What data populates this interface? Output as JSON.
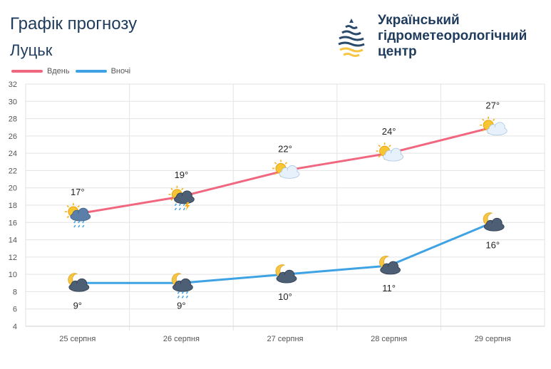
{
  "header": {
    "title": "Графік прогнозу",
    "city": "Луцьк",
    "org_lines": [
      "Український",
      "гідрометеорологічний",
      "центр"
    ]
  },
  "colors": {
    "day": "#f0677f",
    "night": "#3fa2e4",
    "text": "#1f3c5c",
    "logo_dark": "#2a4a6b",
    "logo_yellow": "#f6c543"
  },
  "chart_data": {
    "type": "line",
    "categories": [
      "25 серпня",
      "26 серпня",
      "27 серпня",
      "28 серпня",
      "29 серпня"
    ],
    "series": [
      {
        "name": "Вдень",
        "values": [
          17,
          19,
          22,
          24,
          27
        ],
        "labels": [
          "17°",
          "19°",
          "22°",
          "24°",
          "27°"
        ],
        "icons": [
          "sun-cloud-rain",
          "sun-storm-rain",
          "sun-cloud",
          "sun-cloud",
          "sun-cloud"
        ]
      },
      {
        "name": "Вночі",
        "values": [
          9,
          9,
          10,
          11,
          16
        ],
        "labels": [
          "9°",
          "9°",
          "10°",
          "11°",
          "16°"
        ],
        "icons": [
          "moon-cloud",
          "moon-cloud-rain",
          "moon-cloud",
          "moon-cloud",
          "moon-cloud"
        ]
      }
    ],
    "ylim": [
      4,
      32
    ],
    "yticks": [
      4,
      6,
      8,
      10,
      12,
      14,
      16,
      18,
      20,
      22,
      24,
      26,
      28,
      30,
      32
    ],
    "legend": "top-left",
    "grid": true
  }
}
